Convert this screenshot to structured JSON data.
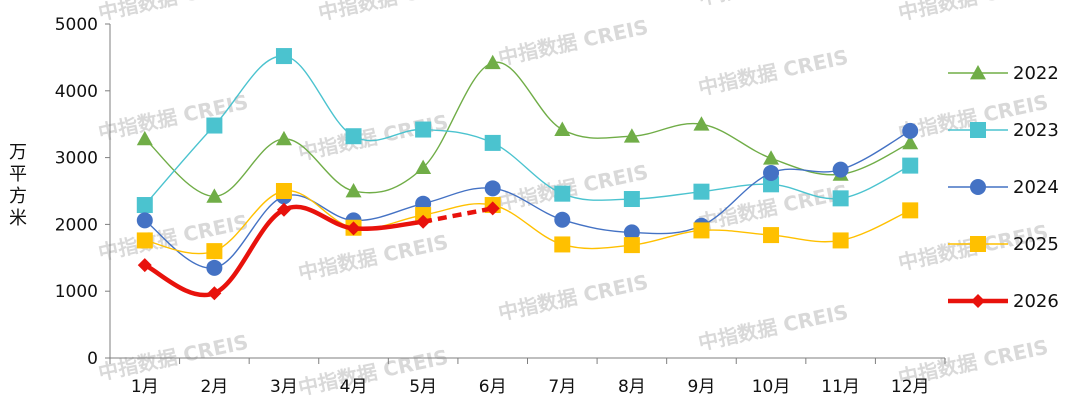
{
  "watermark": "中指数据 CREIS",
  "chart_data": {
    "type": "line",
    "ylabel": "万平方米",
    "ylim": [
      0,
      5000
    ],
    "yticks": [
      0,
      1000,
      2000,
      3000,
      4000,
      5000
    ],
    "categories": [
      "1月",
      "2月",
      "3月",
      "4月",
      "5月",
      "6月",
      "7月",
      "8月",
      "9月",
      "10月",
      "11月",
      "12月"
    ],
    "legend_position": "right",
    "series": [
      {
        "name": "2022",
        "color": "#70AD47",
        "marker": "triangle",
        "values": [
          3280,
          2420,
          3280,
          2500,
          2850,
          4420,
          3420,
          3320,
          3500,
          2990,
          2750,
          3220
        ]
      },
      {
        "name": "2023",
        "color": "#4BC3CF",
        "marker": "square",
        "values": [
          2290,
          3480,
          4520,
          3320,
          3420,
          3220,
          2460,
          2380,
          2490,
          2600,
          2390,
          2880
        ]
      },
      {
        "name": "2024",
        "color": "#4472C4",
        "marker": "circle",
        "values": [
          2060,
          1350,
          2420,
          2060,
          2310,
          2540,
          2070,
          1880,
          1980,
          2770,
          2820,
          3400
        ]
      },
      {
        "name": "2025",
        "color": "#FFC000",
        "marker": "square",
        "values": [
          1760,
          1600,
          2500,
          1950,
          2140,
          2290,
          1700,
          1690,
          1910,
          1840,
          1760,
          2210
        ]
      },
      {
        "name": "2026",
        "color": "#E8120C",
        "marker": "diamond",
        "values": [
          1390,
          970,
          2220,
          1940,
          2040,
          2240,
          null,
          null,
          null,
          null,
          null,
          null
        ],
        "dashed_from_index": 4
      }
    ]
  }
}
